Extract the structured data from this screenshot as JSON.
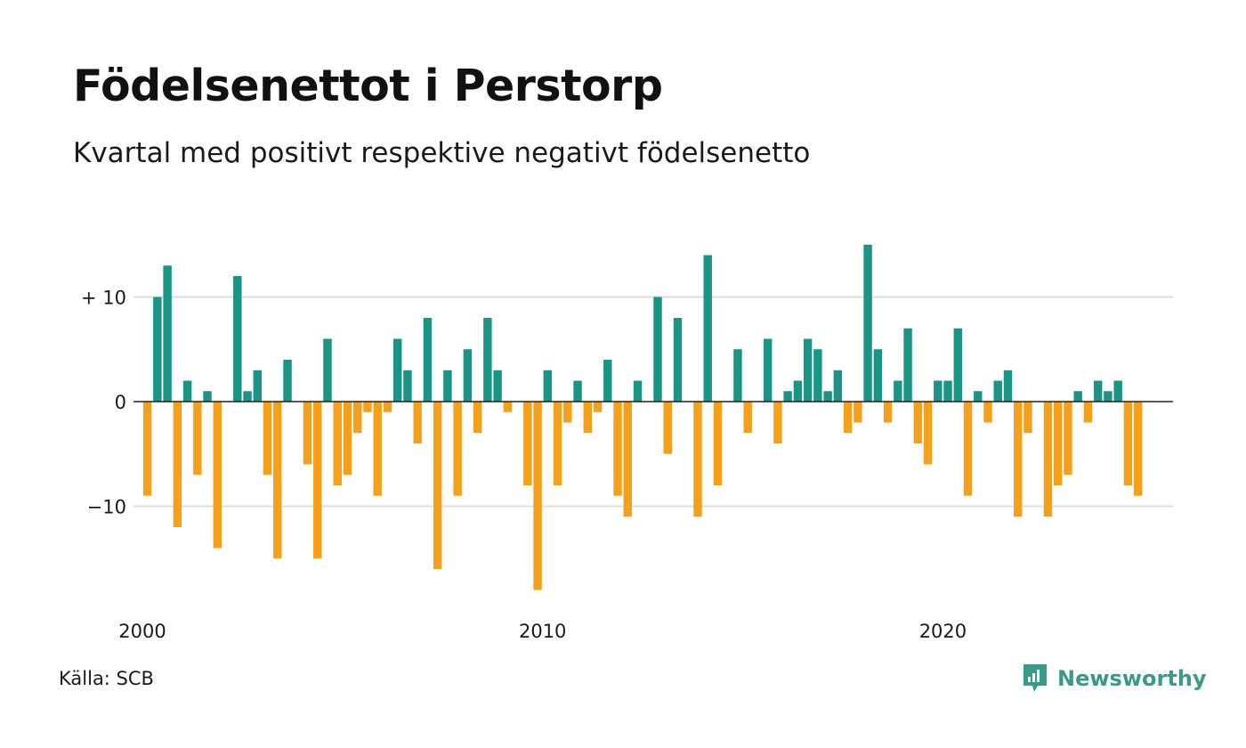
{
  "header": {
    "title": "Födelsenettot i Perstorp",
    "subtitle": "Kvartal med positivt respektive negativt födelsenetto"
  },
  "footer": {
    "source": "Källa: SCB",
    "brand": "Newsworthy"
  },
  "colors": {
    "positive": "#1a9484",
    "negative": "#f5a01a",
    "grid": "#dddddd",
    "axis": "#222222",
    "brand": "#3a9a8a"
  },
  "icons": {
    "brand_logo": "newsworthy-chat-bars-icon"
  },
  "chart_data": {
    "type": "bar",
    "title": "Födelsenettot i Perstorp",
    "subtitle": "Kvartal med positivt respektive negativt födelsenetto",
    "xlabel": "",
    "ylabel": "",
    "x_range": [
      2000,
      2025.75
    ],
    "ylim": [
      -19,
      16
    ],
    "y_ticks": [
      10,
      0,
      -10
    ],
    "y_tick_labels": [
      "+ 10",
      "0",
      "−10"
    ],
    "x_ticks": [
      2000,
      2010,
      2020
    ],
    "x_tick_labels": [
      "2000",
      "2010",
      "2020"
    ],
    "grid": true,
    "legend": "none",
    "series": [
      {
        "x": [
          "2000 Q1",
          "2000 Q2",
          "2000 Q3",
          "2000 Q4",
          "2001 Q1",
          "2001 Q2",
          "2001 Q3",
          "2001 Q4",
          "2002 Q1",
          "2002 Q2",
          "2002 Q3",
          "2002 Q4",
          "2003 Q1",
          "2003 Q2",
          "2003 Q3",
          "2003 Q4",
          "2004 Q1",
          "2004 Q2",
          "2004 Q3",
          "2004 Q4",
          "2005 Q1",
          "2005 Q2",
          "2005 Q3",
          "2005 Q4",
          "2006 Q1",
          "2006 Q2",
          "2006 Q3",
          "2006 Q4",
          "2007 Q1",
          "2007 Q2",
          "2007 Q3",
          "2007 Q4",
          "2008 Q1",
          "2008 Q2",
          "2008 Q3",
          "2008 Q4",
          "2009 Q1",
          "2009 Q2",
          "2009 Q3",
          "2009 Q4",
          "2010 Q1",
          "2010 Q2",
          "2010 Q3",
          "2010 Q4",
          "2011 Q1",
          "2011 Q2",
          "2011 Q3",
          "2011 Q4",
          "2012 Q1",
          "2012 Q2",
          "2012 Q3",
          "2012 Q4",
          "2013 Q1",
          "2013 Q2",
          "2013 Q3",
          "2013 Q4",
          "2014 Q1",
          "2014 Q2",
          "2014 Q3",
          "2014 Q4",
          "2015 Q1",
          "2015 Q2",
          "2015 Q3",
          "2015 Q4",
          "2016 Q1",
          "2016 Q2",
          "2016 Q3",
          "2016 Q4",
          "2017 Q1",
          "2017 Q2",
          "2017 Q3",
          "2017 Q4",
          "2018 Q1",
          "2018 Q2",
          "2018 Q3",
          "2018 Q4",
          "2019 Q1",
          "2019 Q2",
          "2019 Q3",
          "2019 Q4",
          "2020 Q1",
          "2020 Q2",
          "2020 Q3",
          "2020 Q4",
          "2021 Q1",
          "2021 Q2",
          "2021 Q3",
          "2021 Q4",
          "2022 Q1",
          "2022 Q2",
          "2022 Q3",
          "2022 Q4",
          "2023 Q1",
          "2023 Q2",
          "2023 Q3",
          "2023 Q4",
          "2024 Q1",
          "2024 Q2",
          "2024 Q3",
          "2024 Q4",
          "2025 Q1",
          "2025 Q2",
          "2025 Q3"
        ],
        "values": [
          -9,
          10,
          13,
          -12,
          2,
          -7,
          1,
          -14,
          0,
          12,
          1,
          3,
          -7,
          -15,
          4,
          0,
          -6,
          -15,
          6,
          -8,
          -7,
          -3,
          -1,
          -9,
          -1,
          6,
          3,
          -4,
          8,
          -16,
          3,
          -9,
          5,
          -3,
          8,
          3,
          -1,
          0,
          -8,
          -18,
          3,
          -8,
          -2,
          2,
          -3,
          -1,
          4,
          -9,
          -11,
          2,
          0,
          10,
          -5,
          8,
          0,
          -11,
          14,
          -8,
          0,
          5,
          -3,
          0,
          6,
          -4,
          1,
          2,
          6,
          5,
          1,
          3,
          -3,
          -2,
          15,
          5,
          -2,
          2,
          7,
          -4,
          -6,
          2,
          2,
          7,
          -9,
          1,
          -2,
          2,
          3,
          -11,
          -3,
          0,
          -11,
          -8,
          -7,
          1,
          -2,
          2,
          1,
          2,
          -8,
          -9,
          0,
          0,
          0
        ]
      }
    ]
  }
}
